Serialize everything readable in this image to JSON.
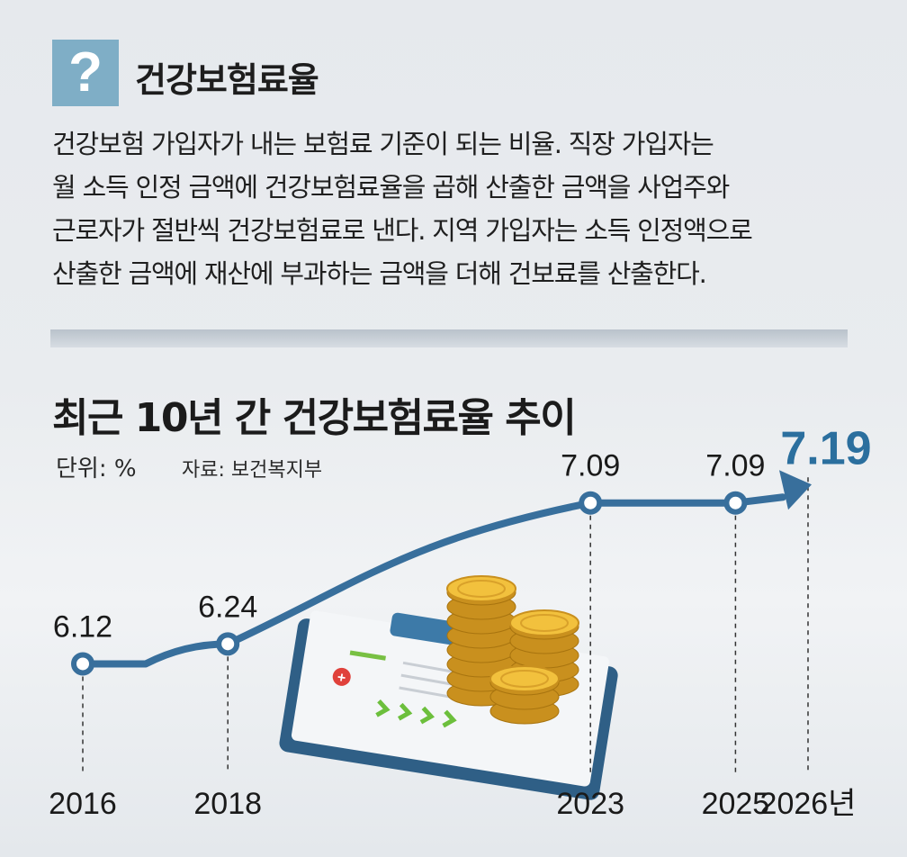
{
  "header": {
    "icon_symbol": "?",
    "term": "건강보험료율"
  },
  "description": {
    "lines": [
      "건강보험 가입자가 내는 보험료 기준이 되는 비율. 직장 가입자는",
      "월 소득 인정 금액에 건강보험료율을 곱해 산출한 금액을 사업주와",
      "근로자가 절반씩 건강보험료로 낸다. 지역 가입자는 소득 인정액으로",
      "산출한 금액에 재산에 부과하는 금액을 더해 건보료를 산출한다."
    ]
  },
  "chart_meta": {
    "unit": "단위: %",
    "source": "자료: 보건복지부"
  },
  "colors": {
    "line": "#386f9c",
    "highlight": "#2b6f9e",
    "icon_bg": "#7faec6"
  },
  "chart_data": {
    "type": "line",
    "title": "최근 10년 간 건강보험료율 추이",
    "x": [
      "2016",
      "2018",
      "2023",
      "2025",
      "2026년"
    ],
    "values": [
      6.12,
      6.24,
      7.09,
      7.09,
      7.19
    ],
    "value_labels": [
      "6.12",
      "6.24",
      "7.09",
      "7.09",
      "7.19"
    ],
    "highlight_index": 4,
    "xlabel": "",
    "ylabel": "",
    "ylim": [
      5.9,
      7.3
    ],
    "grid": false
  }
}
